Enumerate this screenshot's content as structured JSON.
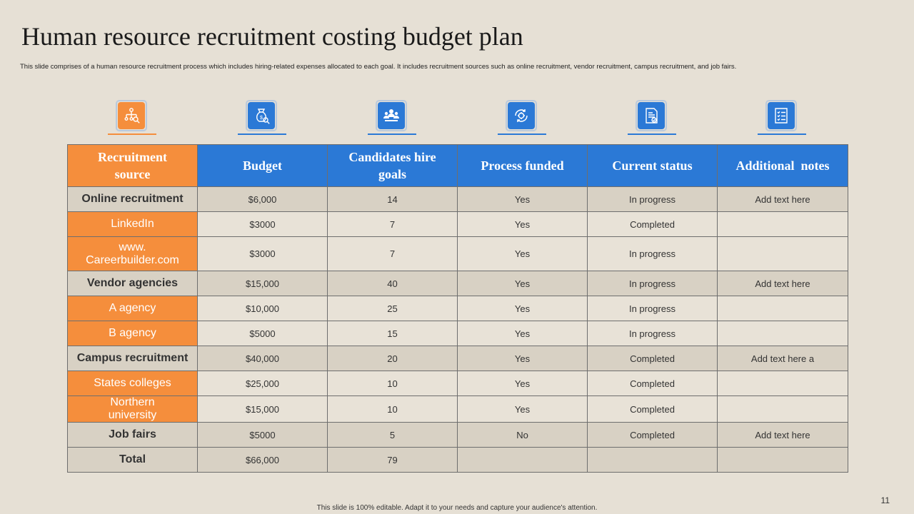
{
  "title": "Human resource recruitment costing budget plan",
  "subtitle": "This slide comprises of a human resource recruitment process which includes hiring-related expenses allocated to each goal. It includes recruitment sources such as online recruitment, vendor recruitment, campus recruitment, and job fairs.",
  "colors": {
    "accent_orange": "#f58e3c",
    "accent_blue": "#2b79d6",
    "background": "#e6e0d5"
  },
  "icons": [
    "org-search-icon",
    "money-bag-search-icon",
    "team-icon",
    "gear-cycle-icon",
    "document-check-icon",
    "checklist-icon"
  ],
  "table": {
    "headers": {
      "source": "Recruitment source",
      "budget": "Budget",
      "goals": "Candidates hire goals",
      "funded": "Process funded",
      "status": "Current status",
      "notes": "Additional  notes"
    },
    "rows": [
      {
        "kind": "cat",
        "source": "Online recruitment",
        "budget": "$6,000",
        "goals": "14",
        "funded": "Yes",
        "status": "In progress",
        "notes": "Add text here"
      },
      {
        "kind": "sub",
        "source": "LinkedIn",
        "budget": "$3000",
        "goals": "7",
        "funded": "Yes",
        "status": "Completed",
        "notes": ""
      },
      {
        "kind": "sub",
        "source": "www. Careerbuilder.com",
        "budget": "$3000",
        "goals": "7",
        "funded": "Yes",
        "status": "In progress",
        "notes": ""
      },
      {
        "kind": "cat",
        "source": "Vendor agencies",
        "budget": "$15,000",
        "goals": "40",
        "funded": "Yes",
        "status": "In progress",
        "notes": "Add text here"
      },
      {
        "kind": "sub",
        "source": "A agency",
        "budget": "$10,000",
        "goals": "25",
        "funded": "Yes",
        "status": "In progress",
        "notes": ""
      },
      {
        "kind": "sub",
        "source": "B agency",
        "budget": "$5000",
        "goals": "15",
        "funded": "Yes",
        "status": "In progress",
        "notes": ""
      },
      {
        "kind": "cat",
        "source": "Campus recruitment",
        "budget": "$40,000",
        "goals": "20",
        "funded": "Yes",
        "status": "Completed",
        "notes": "Add text here a"
      },
      {
        "kind": "sub",
        "source": "States colleges",
        "budget": "$25,000",
        "goals": "10",
        "funded": "Yes",
        "status": "Completed",
        "notes": ""
      },
      {
        "kind": "sub",
        "source": "Northern university",
        "budget": "$15,000",
        "goals": "10",
        "funded": "Yes",
        "status": "Completed",
        "notes": ""
      },
      {
        "kind": "cat",
        "source": "Job fairs",
        "budget": "$5000",
        "goals": "5",
        "funded": "No",
        "status": "Completed",
        "notes": "Add text here"
      },
      {
        "kind": "total",
        "source": "Total",
        "budget": "$66,000",
        "goals": "79",
        "funded": "",
        "status": "",
        "notes": ""
      }
    ]
  },
  "footer": "This slide is 100% editable.  Adapt it to your needs and capture your audience's attention.",
  "page_number": "11"
}
